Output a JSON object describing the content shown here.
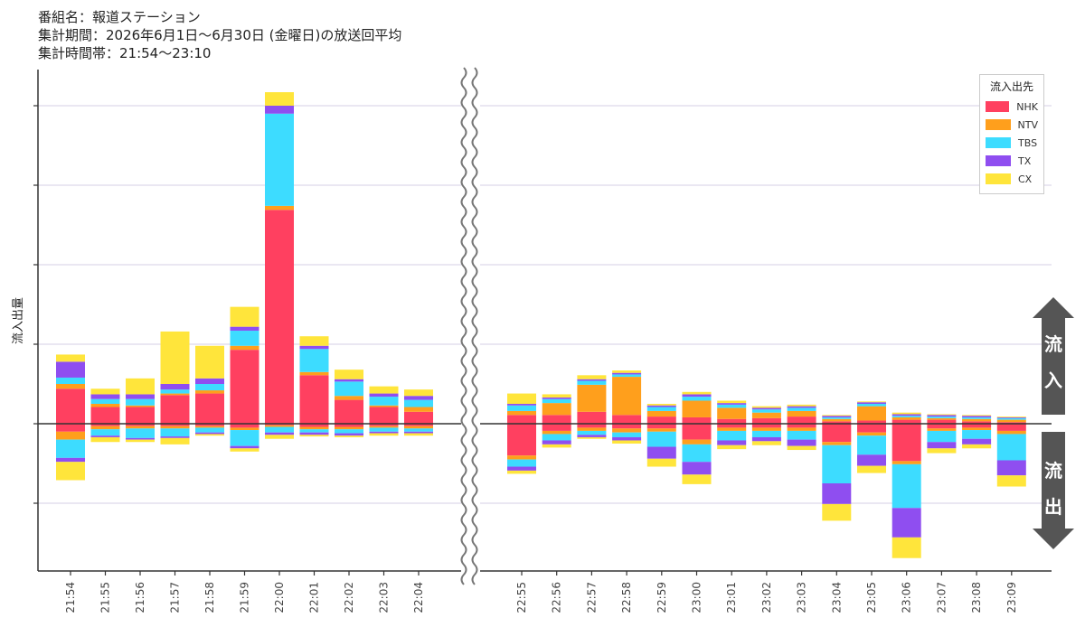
{
  "header": {
    "program": "番組名：報道ステーション",
    "period": "集計期間：2026年6月1日～6月30日 (金曜日)の放送回平均",
    "timeband": "集計時間帯：21:54～23:10"
  },
  "arrows": {
    "inflow": "流入",
    "outflow": "流出"
  },
  "chart_data": {
    "type": "bar",
    "stacked": true,
    "ylabel": "流入出量",
    "legend": {
      "title": "流入出先",
      "placement": "top-right"
    },
    "axis_break": true,
    "grid": true,
    "series": [
      {
        "name": "NHK",
        "color": "#ff4060"
      },
      {
        "name": "NTV",
        "color": "#ff9f1c"
      },
      {
        "name": "TBS",
        "color": "#3ddcff"
      },
      {
        "name": "TX",
        "color": "#8f4ef0"
      },
      {
        "name": "CX",
        "color": "#ffe53b"
      }
    ],
    "panels": [
      {
        "categories": [
          "21:54",
          "21:55",
          "21:56",
          "21:57",
          "21:58",
          "21:59",
          "22:00",
          "22:01",
          "22:02",
          "22:03",
          "22:04"
        ],
        "inflow": {
          "NHK": [
            0.44,
            0.21,
            0.21,
            0.36,
            0.38,
            0.93,
            2.69,
            0.61,
            0.3,
            0.21,
            0.15
          ],
          "NTV": [
            0.06,
            0.04,
            0.02,
            0.02,
            0.04,
            0.05,
            0.05,
            0.04,
            0.05,
            0.02,
            0.06
          ],
          "TBS": [
            0.08,
            0.06,
            0.08,
            0.05,
            0.08,
            0.19,
            1.16,
            0.29,
            0.18,
            0.11,
            0.09
          ],
          "TX": [
            0.2,
            0.06,
            0.06,
            0.07,
            0.07,
            0.05,
            0.1,
            0.04,
            0.03,
            0.04,
            0.05
          ],
          "CX": [
            0.09,
            0.07,
            0.2,
            0.66,
            0.41,
            0.25,
            0.17,
            0.12,
            0.12,
            0.09,
            0.08
          ]
        },
        "outflow": {
          "NHK": [
            0.1,
            0.03,
            0.03,
            0.03,
            0.03,
            0.05,
            0.02,
            0.04,
            0.04,
            0.03,
            0.03
          ],
          "NTV": [
            0.1,
            0.04,
            0.03,
            0.03,
            0.02,
            0.03,
            0.02,
            0.03,
            0.03,
            0.02,
            0.03
          ],
          "TBS": [
            0.23,
            0.08,
            0.12,
            0.1,
            0.06,
            0.2,
            0.07,
            0.04,
            0.05,
            0.05,
            0.04
          ],
          "TX": [
            0.05,
            0.02,
            0.02,
            0.02,
            0.02,
            0.03,
            0.03,
            0.03,
            0.03,
            0.02,
            0.02
          ],
          "CX": [
            0.23,
            0.06,
            0.03,
            0.08,
            0.02,
            0.04,
            0.05,
            0.02,
            0.02,
            0.03,
            0.03
          ]
        }
      },
      {
        "categories": [
          "22:55",
          "22:56",
          "22:57",
          "22:58",
          "22:59",
          "23:00",
          "23:01",
          "23:02",
          "23:03",
          "23:04",
          "23:05",
          "23:06",
          "23:07",
          "23:08",
          "23:09"
        ],
        "inflow": {
          "NHK": [
            0.11,
            0.11,
            0.15,
            0.11,
            0.09,
            0.08,
            0.06,
            0.07,
            0.09,
            0.03,
            0.04,
            0.05,
            0.05,
            0.03,
            0.02
          ],
          "NTV": [
            0.05,
            0.15,
            0.34,
            0.48,
            0.07,
            0.21,
            0.14,
            0.07,
            0.07,
            0.03,
            0.18,
            0.03,
            0.02,
            0.03,
            0.03
          ],
          "TBS": [
            0.07,
            0.05,
            0.05,
            0.03,
            0.05,
            0.05,
            0.04,
            0.04,
            0.04,
            0.02,
            0.03,
            0.02,
            0.02,
            0.02,
            0.02
          ],
          "TX": [
            0.02,
            0.02,
            0.02,
            0.02,
            0.02,
            0.03,
            0.02,
            0.02,
            0.02,
            0.02,
            0.02,
            0.02,
            0.02,
            0.02,
            0.01
          ],
          "CX": [
            0.13,
            0.04,
            0.05,
            0.03,
            0.02,
            0.03,
            0.03,
            0.02,
            0.02,
            0.01,
            0.01,
            0.02,
            0.01,
            0.01,
            0.01
          ]
        },
        "outflow": {
          "NHK": [
            0.4,
            0.09,
            0.05,
            0.06,
            0.06,
            0.2,
            0.05,
            0.05,
            0.05,
            0.23,
            0.11,
            0.47,
            0.06,
            0.05,
            0.09
          ],
          "NTV": [
            0.05,
            0.04,
            0.04,
            0.05,
            0.04,
            0.06,
            0.04,
            0.04,
            0.04,
            0.04,
            0.04,
            0.04,
            0.03,
            0.03,
            0.04
          ],
          "TBS": [
            0.09,
            0.08,
            0.05,
            0.06,
            0.19,
            0.22,
            0.12,
            0.08,
            0.11,
            0.48,
            0.24,
            0.55,
            0.14,
            0.11,
            0.33
          ],
          "TX": [
            0.05,
            0.05,
            0.03,
            0.04,
            0.15,
            0.16,
            0.06,
            0.05,
            0.08,
            0.26,
            0.14,
            0.37,
            0.08,
            0.07,
            0.19
          ],
          "CX": [
            0.04,
            0.04,
            0.02,
            0.04,
            0.1,
            0.12,
            0.05,
            0.05,
            0.05,
            0.21,
            0.09,
            0.26,
            0.06,
            0.05,
            0.14
          ]
        }
      }
    ]
  }
}
